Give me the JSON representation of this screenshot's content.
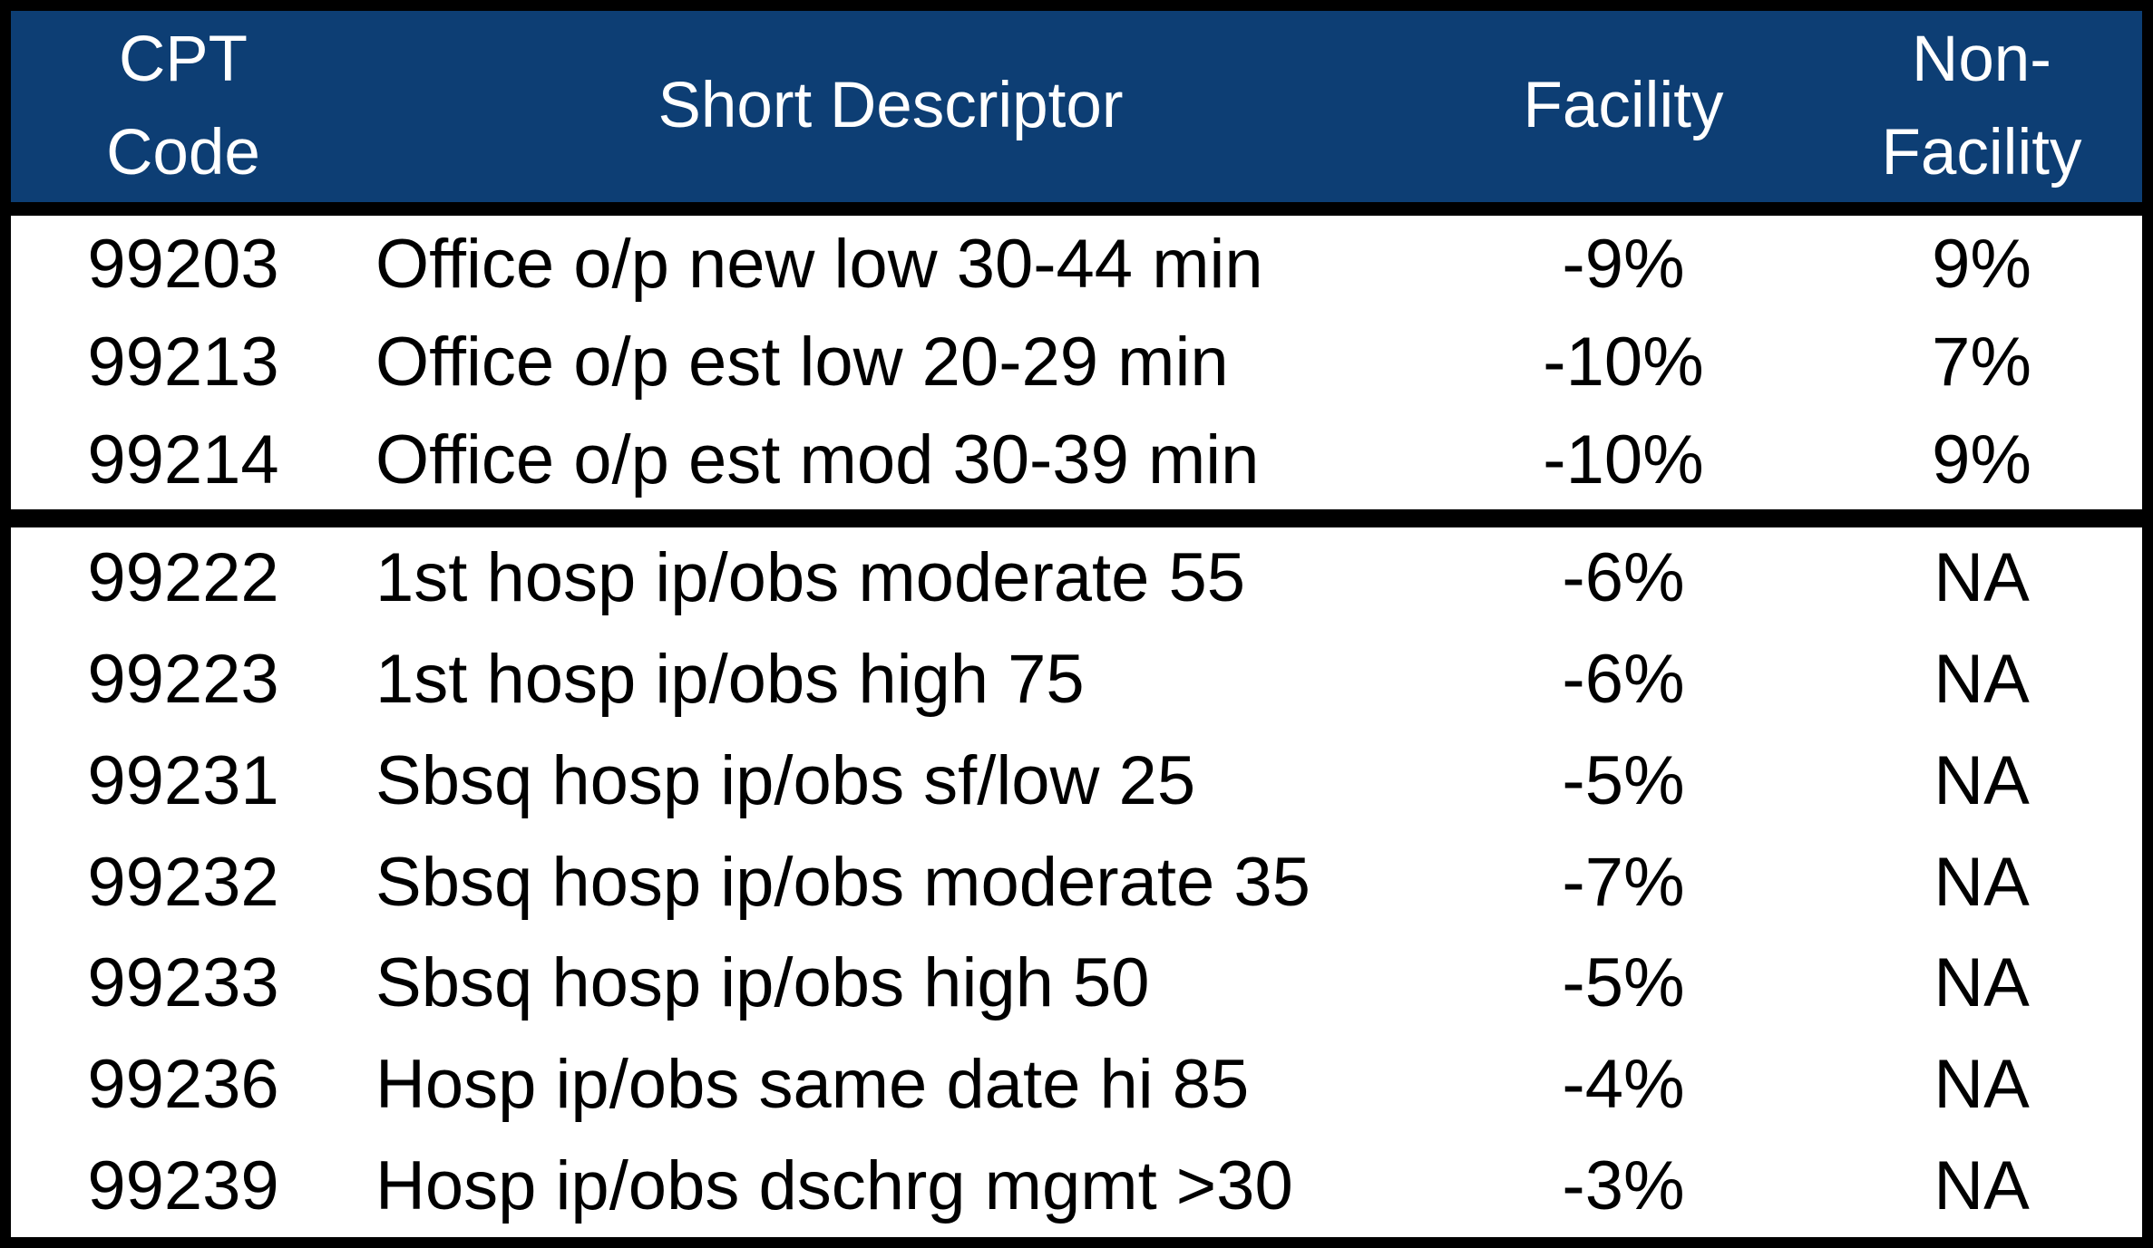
{
  "colors": {
    "header_bg": "#0D3E74",
    "header_text": "#FFFFFF",
    "body_bg": "#FFFFFF",
    "body_text": "#000000",
    "border": "#000000"
  },
  "table": {
    "header": {
      "cpt_line1": "CPT",
      "cpt_line2": "Code",
      "descriptor": "Short Descriptor",
      "facility": "Facility",
      "non_facility_line1": "Non-",
      "non_facility_line2": "Facility"
    },
    "sections": [
      {
        "rows": [
          {
            "code": "99203",
            "descriptor": "Office o/p new low 30-44 min",
            "facility": "-9%",
            "non_facility": "9%"
          },
          {
            "code": "99213",
            "descriptor": "Office o/p est low 20-29 min",
            "facility": "-10%",
            "non_facility": "7%"
          },
          {
            "code": "99214",
            "descriptor": "Office o/p est mod 30-39 min",
            "facility": "-10%",
            "non_facility": "9%"
          }
        ]
      },
      {
        "rows": [
          {
            "code": "99222",
            "descriptor": "1st hosp ip/obs moderate 55",
            "facility": "-6%",
            "non_facility": "NA"
          },
          {
            "code": "99223",
            "descriptor": "1st hosp ip/obs high 75",
            "facility": "-6%",
            "non_facility": "NA"
          },
          {
            "code": "99231",
            "descriptor": "Sbsq hosp ip/obs sf/low 25",
            "facility": "-5%",
            "non_facility": "NA"
          },
          {
            "code": "99232",
            "descriptor": "Sbsq hosp ip/obs moderate 35",
            "facility": "-7%",
            "non_facility": "NA"
          },
          {
            "code": "99233",
            "descriptor": "Sbsq hosp ip/obs high 50",
            "facility": "-5%",
            "non_facility": "NA"
          },
          {
            "code": "99236",
            "descriptor": "Hosp ip/obs same date hi 85",
            "facility": "-4%",
            "non_facility": "NA"
          },
          {
            "code": "99239",
            "descriptor": "Hosp ip/obs dschrg mgmt >30",
            "facility": "-3%",
            "non_facility": "NA"
          }
        ]
      }
    ]
  }
}
